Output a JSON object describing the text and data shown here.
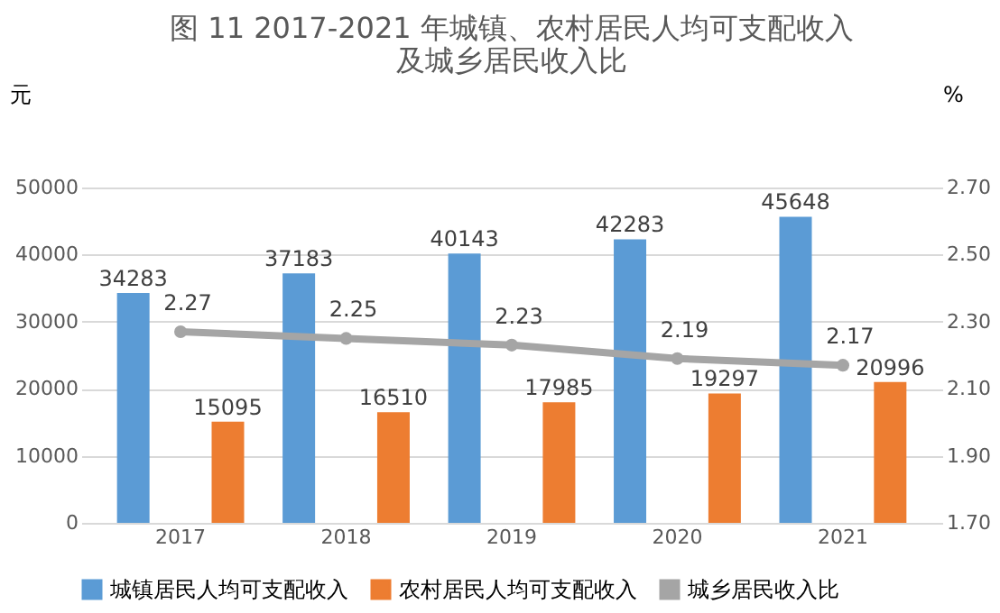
{
  "chart_data": {
    "type": "bar",
    "title": [
      "图 11 2017-2021 年城镇、农村居民人均可支配收入",
      "及城乡居民收入比"
    ],
    "ylabel": "元",
    "y2label": "%",
    "categories": [
      "2017",
      "2018",
      "2019",
      "2020",
      "2021"
    ],
    "series": [
      {
        "name": "城镇居民人均可支配收入",
        "color": "#5b9bd5",
        "values": [
          34283,
          37183,
          40143,
          42283,
          45648
        ]
      },
      {
        "name": "农村居民人均可支配收入",
        "color": "#ed7d31",
        "values": [
          15095,
          16510,
          17985,
          19297,
          20996
        ]
      },
      {
        "name": "城乡居民收入比",
        "type": "line",
        "axis": "y2",
        "color": "#a5a5a5",
        "values": [
          2.27,
          2.25,
          2.23,
          2.19,
          2.17
        ]
      }
    ],
    "ylim": [
      0,
      50000
    ],
    "yticks": [
      0,
      10000,
      20000,
      30000,
      40000,
      50000
    ],
    "y2lim": [
      1.7,
      2.7
    ],
    "y2ticks": [
      {
        "value": 1.7,
        "label": "1.70"
      },
      {
        "value": 1.9,
        "label": "1.90"
      },
      {
        "value": 2.1,
        "label": "2.10"
      },
      {
        "value": 2.3,
        "label": "2.30"
      },
      {
        "value": 2.5,
        "label": "2.50"
      },
      {
        "value": 2.7,
        "label": "2.70"
      }
    ],
    "grid": "y",
    "legend": "bottom",
    "marker": "circle",
    "data_labels": true
  }
}
